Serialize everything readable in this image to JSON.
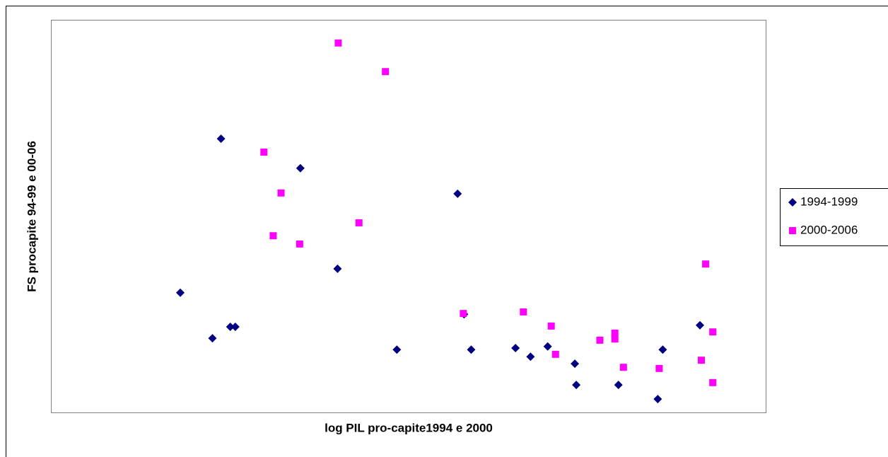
{
  "chart_data": {
    "type": "scatter",
    "x_label": "log PIL pro-capite1994 e 2000",
    "y_label": "FS procapite 94-99 e 00-06",
    "xlim": [
      0,
      100
    ],
    "ylim": [
      0,
      100
    ],
    "legend": "right",
    "series": [
      {
        "name": "1994-1999",
        "color": "#000080",
        "marker": "diamond",
        "x": [
          18.1,
          22.6,
          23.8,
          25.1,
          25.8,
          34.9,
          40.1,
          48.4,
          56.9,
          57.8,
          58.8,
          65.0,
          67.1,
          69.5,
          73.3,
          73.5,
          79.4,
          84.9,
          85.6,
          90.8
        ],
        "values": [
          30.5,
          18.9,
          69.7,
          21.8,
          21.8,
          62.2,
          36.6,
          16.0,
          55.7,
          25.0,
          16.0,
          16.4,
          14.2,
          16.8,
          12.4,
          7.0,
          7.0,
          3.4,
          16.0,
          22.2
        ]
      },
      {
        "name": "2000-2006",
        "color": "#ff00ff",
        "marker": "square",
        "x": [
          40.2,
          46.8,
          29.8,
          32.2,
          43.1,
          31.1,
          34.8,
          57.7,
          66.1,
          70.0,
          70.6,
          76.8,
          78.9,
          78.9,
          80.1,
          85.1,
          91.6,
          92.6,
          91.0,
          92.6
        ],
        "values": [
          94.1,
          86.8,
          66.3,
          55.9,
          48.3,
          45.0,
          42.9,
          25.2,
          25.6,
          22.0,
          14.8,
          18.4,
          20.2,
          18.7,
          11.5,
          11.2,
          37.8,
          20.5,
          13.3,
          7.6
        ]
      }
    ]
  }
}
